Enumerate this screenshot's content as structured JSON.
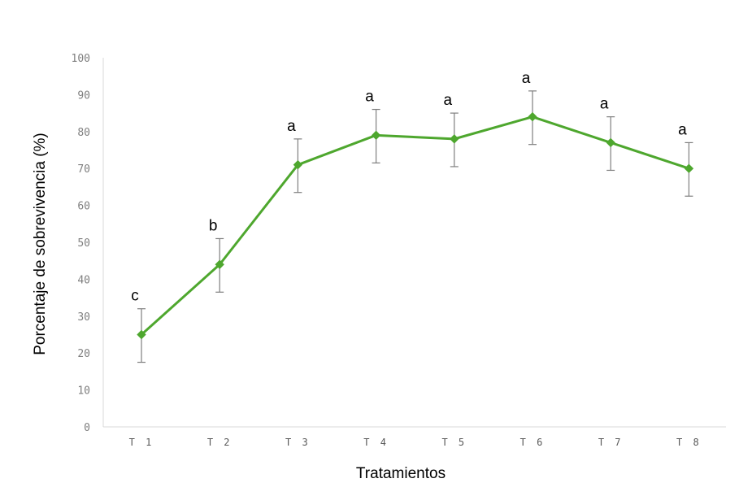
{
  "chart_data": {
    "type": "line",
    "xlabel": "Tratamientos",
    "ylabel": "Porcentaje de sobrevivencia  (%)",
    "categories": [
      "T 1",
      "T 2",
      "T 3",
      "T 4",
      "T 5",
      "T 6",
      "T 7",
      "T 8"
    ],
    "ylim": [
      0,
      100
    ],
    "yticks": [
      "0",
      "10",
      "20",
      "30",
      "40",
      "50",
      "60",
      "70",
      "80",
      "90",
      "100"
    ],
    "grid": false,
    "series": [
      {
        "values": [
          25,
          44,
          71,
          79,
          78,
          84,
          77,
          70
        ],
        "error_low": [
          17.5,
          36.5,
          63.5,
          71.5,
          70.5,
          76.5,
          69.5,
          62.5
        ],
        "error_high": [
          32,
          51,
          78,
          86,
          85,
          91,
          84,
          77
        ],
        "significance_labels": [
          "c",
          "b",
          "a",
          "a",
          "a",
          "a",
          "a",
          "a"
        ],
        "color": "#4ea72e"
      }
    ]
  }
}
